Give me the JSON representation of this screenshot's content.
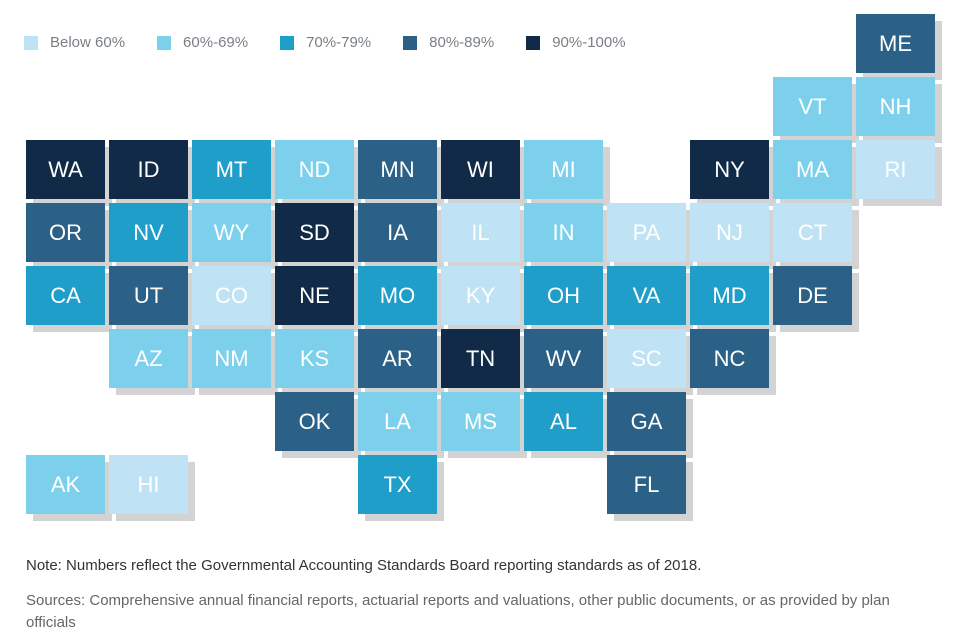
{
  "legend": [
    {
      "label": "Below 60%",
      "color": "#bfe3f5"
    },
    {
      "label": "60%-69%",
      "color": "#7dd0ec"
    },
    {
      "label": "70%-79%",
      "color": "#1e9ec9"
    },
    {
      "label": "80%-89%",
      "color": "#2b6186"
    },
    {
      "label": "90%-100%",
      "color": "#102a47"
    }
  ],
  "states": [
    {
      "abbr": "ME",
      "row": 0,
      "col": 10,
      "level": 3
    },
    {
      "abbr": "VT",
      "row": 1,
      "col": 9,
      "level": 1
    },
    {
      "abbr": "NH",
      "row": 1,
      "col": 10,
      "level": 1
    },
    {
      "abbr": "WA",
      "row": 2,
      "col": 0,
      "level": 4
    },
    {
      "abbr": "ID",
      "row": 2,
      "col": 1,
      "level": 4
    },
    {
      "abbr": "MT",
      "row": 2,
      "col": 2,
      "level": 2
    },
    {
      "abbr": "ND",
      "row": 2,
      "col": 3,
      "level": 1
    },
    {
      "abbr": "MN",
      "row": 2,
      "col": 4,
      "level": 3
    },
    {
      "abbr": "WI",
      "row": 2,
      "col": 5,
      "level": 4
    },
    {
      "abbr": "MI",
      "row": 2,
      "col": 6,
      "level": 1
    },
    {
      "abbr": "NY",
      "row": 2,
      "col": 8,
      "level": 4
    },
    {
      "abbr": "MA",
      "row": 2,
      "col": 9,
      "level": 1
    },
    {
      "abbr": "RI",
      "row": 2,
      "col": 10,
      "level": 0
    },
    {
      "abbr": "OR",
      "row": 3,
      "col": 0,
      "level": 3
    },
    {
      "abbr": "NV",
      "row": 3,
      "col": 1,
      "level": 2
    },
    {
      "abbr": "WY",
      "row": 3,
      "col": 2,
      "level": 1
    },
    {
      "abbr": "SD",
      "row": 3,
      "col": 3,
      "level": 4
    },
    {
      "abbr": "IA",
      "row": 3,
      "col": 4,
      "level": 3
    },
    {
      "abbr": "IL",
      "row": 3,
      "col": 5,
      "level": 0
    },
    {
      "abbr": "IN",
      "row": 3,
      "col": 6,
      "level": 1
    },
    {
      "abbr": "PA",
      "row": 3,
      "col": 7,
      "level": 0
    },
    {
      "abbr": "NJ",
      "row": 3,
      "col": 8,
      "level": 0
    },
    {
      "abbr": "CT",
      "row": 3,
      "col": 9,
      "level": 0
    },
    {
      "abbr": "CA",
      "row": 4,
      "col": 0,
      "level": 2
    },
    {
      "abbr": "UT",
      "row": 4,
      "col": 1,
      "level": 3
    },
    {
      "abbr": "CO",
      "row": 4,
      "col": 2,
      "level": 0
    },
    {
      "abbr": "NE",
      "row": 4,
      "col": 3,
      "level": 4
    },
    {
      "abbr": "MO",
      "row": 4,
      "col": 4,
      "level": 2
    },
    {
      "abbr": "KY",
      "row": 4,
      "col": 5,
      "level": 0
    },
    {
      "abbr": "OH",
      "row": 4,
      "col": 6,
      "level": 2
    },
    {
      "abbr": "VA",
      "row": 4,
      "col": 7,
      "level": 2
    },
    {
      "abbr": "MD",
      "row": 4,
      "col": 8,
      "level": 2
    },
    {
      "abbr": "DE",
      "row": 4,
      "col": 9,
      "level": 3
    },
    {
      "abbr": "AZ",
      "row": 5,
      "col": 1,
      "level": 1
    },
    {
      "abbr": "NM",
      "row": 5,
      "col": 2,
      "level": 1
    },
    {
      "abbr": "KS",
      "row": 5,
      "col": 3,
      "level": 1
    },
    {
      "abbr": "AR",
      "row": 5,
      "col": 4,
      "level": 3
    },
    {
      "abbr": "TN",
      "row": 5,
      "col": 5,
      "level": 4
    },
    {
      "abbr": "WV",
      "row": 5,
      "col": 6,
      "level": 3
    },
    {
      "abbr": "SC",
      "row": 5,
      "col": 7,
      "level": 0
    },
    {
      "abbr": "NC",
      "row": 5,
      "col": 8,
      "level": 3
    },
    {
      "abbr": "OK",
      "row": 6,
      "col": 3,
      "level": 3
    },
    {
      "abbr": "LA",
      "row": 6,
      "col": 4,
      "level": 1
    },
    {
      "abbr": "MS",
      "row": 6,
      "col": 5,
      "level": 1
    },
    {
      "abbr": "AL",
      "row": 6,
      "col": 6,
      "level": 2
    },
    {
      "abbr": "GA",
      "row": 6,
      "col": 7,
      "level": 3
    },
    {
      "abbr": "AK",
      "row": 7,
      "col": 0,
      "level": 1
    },
    {
      "abbr": "HI",
      "row": 7,
      "col": 1,
      "level": 0
    },
    {
      "abbr": "TX",
      "row": 7,
      "col": 4,
      "level": 2
    },
    {
      "abbr": "FL",
      "row": 7,
      "col": 7,
      "level": 3
    }
  ],
  "note": "Note: Numbers reflect the Governmental Accounting Standards Board reporting standards as of 2018.",
  "sources": "Sources: Comprehensive annual financial reports, actuarial reports and valuations, other public documents, or as provided by plan officials"
}
